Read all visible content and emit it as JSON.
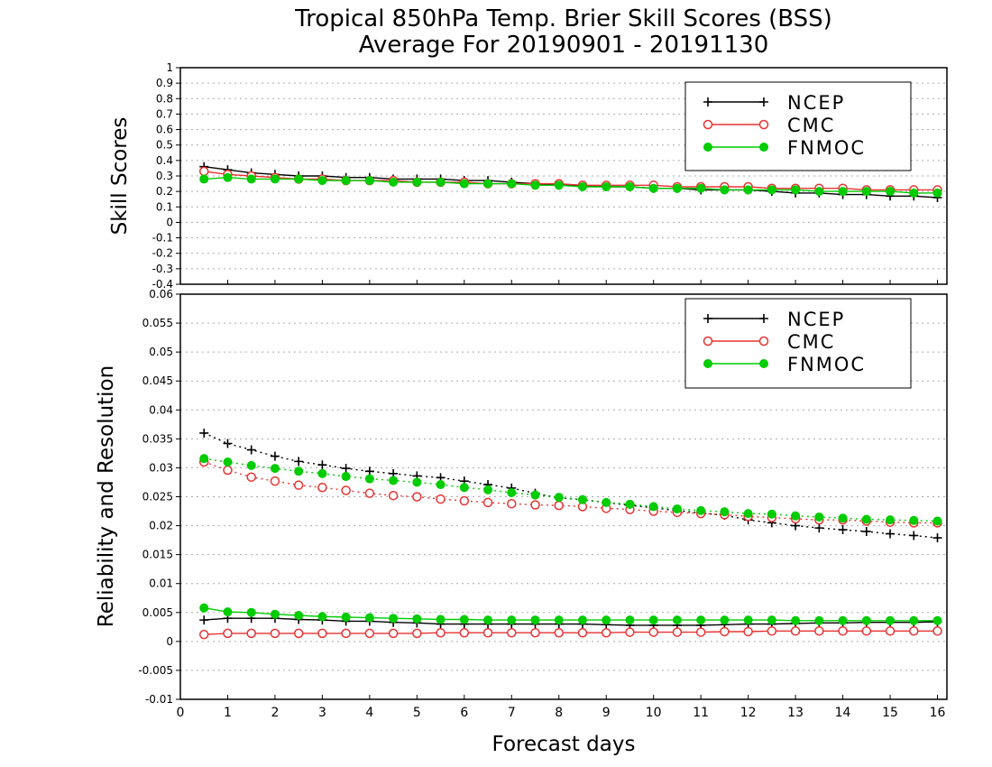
{
  "title_line1": "Tropical 850hPa Temp. Brier Skill Scores (BSS)",
  "title_line2": "Average For 20190901 - 20191130",
  "xlabel": "Forecast days",
  "colors": {
    "NCEP": "#000000",
    "CMC": "#e83232",
    "FNMOC": "#00cc00",
    "grid": "#aaaaaa"
  },
  "chart_data": [
    {
      "type": "line",
      "panel": "top",
      "ylabel": "Skill Scores",
      "xlim": [
        0,
        16.2
      ],
      "ylim": [
        -0.4,
        1
      ],
      "x_ticks": [
        0,
        1,
        2,
        3,
        4,
        5,
        6,
        7,
        8,
        9,
        10,
        11,
        12,
        13,
        14,
        15,
        16
      ],
      "y_ticks": [
        -0.4,
        -0.3,
        -0.2,
        -0.1,
        0,
        0.1,
        0.2,
        0.3,
        0.4,
        0.5,
        0.6,
        0.7,
        0.8,
        0.9,
        1
      ],
      "y_tick_labels": [
        "-0.4",
        "-0.3",
        "-0.2",
        "-0.1",
        "0",
        "0.1",
        "0.2",
        "0.3",
        "0.4",
        "0.5",
        "0.6",
        "0.7",
        "0.8",
        "0.9",
        "1"
      ],
      "grid": true,
      "legend": {
        "placement": "top-right",
        "entries": [
          "NCEP",
          "CMC",
          "FNMOC"
        ]
      },
      "x": [
        0.5,
        1,
        1.5,
        2,
        2.5,
        3,
        3.5,
        4,
        4.5,
        5,
        5.5,
        6,
        6.5,
        7,
        7.5,
        8,
        8.5,
        9,
        9.5,
        10,
        10.5,
        11,
        11.5,
        12,
        12.5,
        13,
        13.5,
        14,
        14.5,
        15,
        15.5,
        16
      ],
      "series": [
        {
          "name": "NCEP",
          "line": "solid",
          "marker": "plus",
          "values": [
            0.36,
            0.34,
            0.32,
            0.31,
            0.3,
            0.3,
            0.29,
            0.29,
            0.28,
            0.28,
            0.28,
            0.27,
            0.27,
            0.26,
            0.25,
            0.24,
            0.24,
            0.23,
            0.23,
            0.22,
            0.22,
            0.21,
            0.21,
            0.21,
            0.2,
            0.19,
            0.19,
            0.18,
            0.18,
            0.17,
            0.17,
            0.16
          ]
        },
        {
          "name": "CMC",
          "line": "solid",
          "marker": "circle-open",
          "values": [
            0.33,
            0.31,
            0.3,
            0.29,
            0.28,
            0.28,
            0.27,
            0.27,
            0.27,
            0.26,
            0.26,
            0.26,
            0.25,
            0.25,
            0.25,
            0.25,
            0.24,
            0.24,
            0.24,
            0.24,
            0.23,
            0.23,
            0.23,
            0.23,
            0.22,
            0.22,
            0.22,
            0.22,
            0.21,
            0.21,
            0.21,
            0.21
          ]
        },
        {
          "name": "FNMOC",
          "line": "solid",
          "marker": "circle-filled",
          "values": [
            0.28,
            0.29,
            0.28,
            0.28,
            0.28,
            0.27,
            0.27,
            0.27,
            0.26,
            0.26,
            0.26,
            0.25,
            0.25,
            0.25,
            0.24,
            0.24,
            0.23,
            0.23,
            0.23,
            0.22,
            0.22,
            0.22,
            0.21,
            0.21,
            0.21,
            0.21,
            0.2,
            0.2,
            0.2,
            0.2,
            0.19,
            0.19
          ]
        }
      ]
    },
    {
      "type": "line",
      "panel": "bottom",
      "ylabel": "Reliability and Resolution",
      "xlim": [
        0,
        16.2
      ],
      "ylim": [
        -0.01,
        0.06
      ],
      "x_ticks": [
        0,
        1,
        2,
        3,
        4,
        5,
        6,
        7,
        8,
        9,
        10,
        11,
        12,
        13,
        14,
        15,
        16
      ],
      "y_ticks": [
        -0.01,
        -0.005,
        0,
        0.005,
        0.01,
        0.015,
        0.02,
        0.025,
        0.03,
        0.035,
        0.04,
        0.045,
        0.05,
        0.055,
        0.06
      ],
      "y_tick_labels": [
        "-0.01",
        "-0.005",
        "0",
        "0.005",
        "0.01",
        "0.015",
        "0.02",
        "0.025",
        "0.03",
        "0.035",
        "0.04",
        "0.045",
        "0.05",
        "0.055",
        "0.06"
      ],
      "grid": true,
      "legend": {
        "placement": "top-right",
        "entries": [
          "NCEP",
          "CMC",
          "FNMOC"
        ]
      },
      "x": [
        0.5,
        1,
        1.5,
        2,
        2.5,
        3,
        3.5,
        4,
        4.5,
        5,
        5.5,
        6,
        6.5,
        7,
        7.5,
        8,
        8.5,
        9,
        9.5,
        10,
        10.5,
        11,
        11.5,
        12,
        12.5,
        13,
        13.5,
        14,
        14.5,
        15,
        15.5,
        16
      ],
      "series": [
        {
          "name": "NCEP",
          "group": "resolution",
          "line": "dotted",
          "marker": "plus",
          "values": [
            0.036,
            0.0342,
            0.0331,
            0.032,
            0.0311,
            0.0305,
            0.0299,
            0.0294,
            0.029,
            0.0286,
            0.0283,
            0.0277,
            0.0271,
            0.0265,
            0.0256,
            0.0248,
            0.0245,
            0.024,
            0.0235,
            0.0231,
            0.0226,
            0.0222,
            0.0218,
            0.021,
            0.0205,
            0.02,
            0.0196,
            0.0193,
            0.019,
            0.0186,
            0.0183,
            0.0179
          ]
        },
        {
          "name": "CMC",
          "group": "resolution",
          "line": "dotted",
          "marker": "circle-open",
          "values": [
            0.031,
            0.0296,
            0.0284,
            0.0277,
            0.027,
            0.0266,
            0.0261,
            0.0256,
            0.0252,
            0.025,
            0.0246,
            0.0243,
            0.024,
            0.0238,
            0.0236,
            0.0235,
            0.0233,
            0.023,
            0.0228,
            0.0225,
            0.0223,
            0.0221,
            0.0219,
            0.0216,
            0.0214,
            0.0212,
            0.021,
            0.021,
            0.0208,
            0.0206,
            0.0205,
            0.0205
          ]
        },
        {
          "name": "FNMOC",
          "group": "resolution",
          "line": "dotted",
          "marker": "circle-filled",
          "values": [
            0.0316,
            0.031,
            0.0304,
            0.0299,
            0.0294,
            0.029,
            0.0285,
            0.0281,
            0.0278,
            0.0275,
            0.0271,
            0.0266,
            0.0262,
            0.0257,
            0.0253,
            0.0249,
            0.0245,
            0.024,
            0.0237,
            0.0233,
            0.0229,
            0.0226,
            0.0224,
            0.0221,
            0.022,
            0.0217,
            0.0215,
            0.0213,
            0.0211,
            0.021,
            0.0209,
            0.0208
          ]
        },
        {
          "name": "NCEP",
          "group": "reliability",
          "line": "solid",
          "marker": "plus",
          "values": [
            0.0037,
            0.004,
            0.004,
            0.004,
            0.0038,
            0.0037,
            0.0035,
            0.0035,
            0.0033,
            0.0032,
            0.003,
            0.003,
            0.003,
            0.003,
            0.003,
            0.003,
            0.003,
            0.0029,
            0.0028,
            0.0028,
            0.0028,
            0.0028,
            0.0029,
            0.003,
            0.003,
            0.0031,
            0.0032,
            0.0032,
            0.0033,
            0.0033,
            0.0033,
            0.0034
          ]
        },
        {
          "name": "CMC",
          "group": "reliability",
          "line": "solid",
          "marker": "circle-open",
          "values": [
            0.0012,
            0.0014,
            0.0014,
            0.0014,
            0.0014,
            0.0014,
            0.0014,
            0.0014,
            0.0014,
            0.0014,
            0.0015,
            0.0015,
            0.0015,
            0.0015,
            0.0015,
            0.0015,
            0.0015,
            0.0015,
            0.0016,
            0.0016,
            0.0016,
            0.0016,
            0.0017,
            0.0017,
            0.0018,
            0.0018,
            0.0018,
            0.0018,
            0.0018,
            0.0018,
            0.0018,
            0.0018
          ]
        },
        {
          "name": "FNMOC",
          "group": "reliability",
          "line": "solid",
          "marker": "circle-filled",
          "values": [
            0.0058,
            0.0051,
            0.005,
            0.0047,
            0.0045,
            0.0043,
            0.0042,
            0.0041,
            0.004,
            0.0039,
            0.0038,
            0.0038,
            0.0037,
            0.0037,
            0.0037,
            0.0037,
            0.0037,
            0.0037,
            0.0037,
            0.0037,
            0.0037,
            0.0037,
            0.0037,
            0.0037,
            0.0037,
            0.0036,
            0.0036,
            0.0036,
            0.0036,
            0.0036,
            0.0036,
            0.0036
          ]
        }
      ]
    }
  ]
}
